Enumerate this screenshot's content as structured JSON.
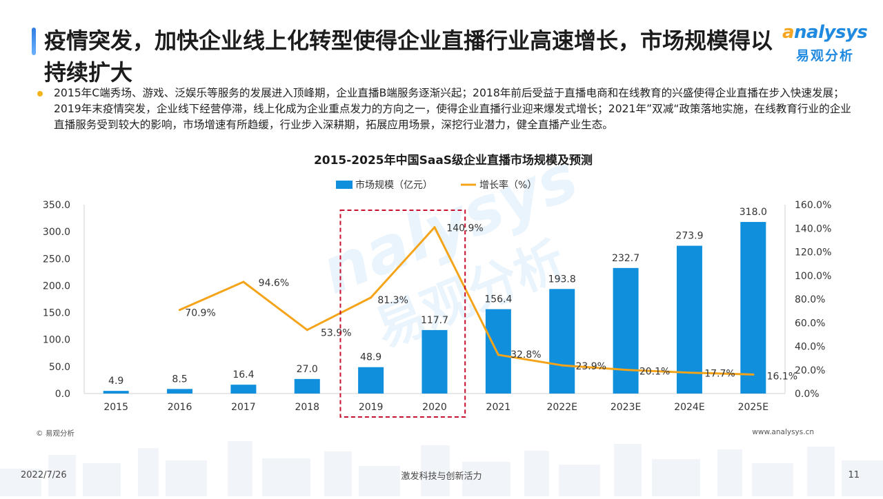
{
  "header": {
    "title": "疫情突发，加快企业线上化转型使得企业直播行业高速增长，市场规模得以持续扩大"
  },
  "logo": {
    "text": "nalysys",
    "sub": "易观分析",
    "watermark": "nalysys",
    "watermark_sub": "易观分析"
  },
  "bullet": {
    "text": "2015年C端秀场、游戏、泛娱乐等服务的发展进入顶峰期，企业直播B端服务逐渐兴起；2018年前后受益于直播电商和在线教育的兴盛使得企业直播在步入快速发展；2019年末疫情突发，企业线下经营停滞，线上化成为企业重点发力的方向之一，使得企业直播行业迎来爆发式增长；2021年”双减“政策落地实施，在线教育行业的企业直播服务受到较大的影响，市场增速有所趋缓，行业步入深耕期，拓展应用场景，深挖行业潜力，健全直播产业生态。"
  },
  "chart_data": {
    "type": "bar",
    "title": "2015-2025年中国SaaS级企业直播市场规模及预测",
    "categories": [
      "2015",
      "2016",
      "2017",
      "2018",
      "2019",
      "2020",
      "2021",
      "2022E",
      "2023E",
      "2024E",
      "2025E"
    ],
    "series": [
      {
        "name": "市场规模（亿元）",
        "type": "bar",
        "axis": "left",
        "values": [
          4.9,
          8.5,
          16.4,
          27.0,
          48.9,
          117.7,
          156.4,
          193.8,
          232.7,
          273.9,
          318.0
        ],
        "labels": [
          "4.9",
          "8.5",
          "16.4",
          "27.0",
          "48.9",
          "117.7",
          "156.4",
          "193.8",
          "232.7",
          "273.9",
          "318.0"
        ],
        "color": "#0f8fdc"
      },
      {
        "name": "增长率（%）",
        "type": "line",
        "axis": "right",
        "values": [
          null,
          70.9,
          94.6,
          53.9,
          81.3,
          140.9,
          32.8,
          23.9,
          20.1,
          17.7,
          16.1
        ],
        "labels": [
          "",
          "70.9%",
          "94.6%",
          "53.9%",
          "81.3%",
          "140.9%",
          "32.8%",
          "23.9%",
          "20.1%",
          "17.7%",
          "16.1%"
        ],
        "color": "#f5a319"
      }
    ],
    "y_left": {
      "range": [
        0,
        350
      ],
      "ticks": [
        "0.0",
        "50.0",
        "100.0",
        "150.0",
        "200.0",
        "250.0",
        "300.0",
        "350.0"
      ]
    },
    "y_right": {
      "range": [
        0,
        160
      ],
      "ticks": [
        "0.0%",
        "20.0%",
        "40.0%",
        "60.0%",
        "80.0%",
        "100.0%",
        "120.0%",
        "140.0%",
        "160.0%"
      ]
    },
    "grid": false,
    "legend": "top-center",
    "highlight": {
      "categories": [
        "2019",
        "2020"
      ],
      "style": "dashed-box",
      "color": "#c8102e"
    }
  },
  "footer": {
    "copyright": "© 易观分析",
    "url": "www.analysys.cn",
    "date": "2022/7/26",
    "slogan": "激发科技与创新活力",
    "page": "11"
  }
}
